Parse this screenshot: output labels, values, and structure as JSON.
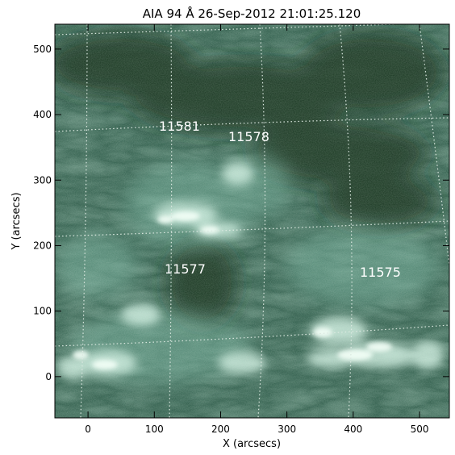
{
  "title": "AIA 94 Å 26-Sep-2012 21:01:25.120",
  "xaxis": {
    "label": "X (arcsecs)",
    "ticks": [
      0,
      100,
      200,
      300,
      400,
      500
    ],
    "range": [
      -50,
      545
    ]
  },
  "yaxis": {
    "label": "Y (arcsecs)",
    "ticks": [
      0,
      100,
      200,
      300,
      400,
      500
    ],
    "range": [
      -63,
      538
    ]
  },
  "colors": {
    "background": "#2c5a48",
    "dark": "#163328",
    "bright": "#e6fff2",
    "grid": "#dbe8e0"
  },
  "active_regions": [
    {
      "label": "11581",
      "x": 128,
      "y": 382
    },
    {
      "label": "11578",
      "x": 232,
      "y": 368
    },
    {
      "label": "11577",
      "x": 142,
      "y": 165
    },
    {
      "label": "11575",
      "x": 453,
      "y": 158
    }
  ]
}
